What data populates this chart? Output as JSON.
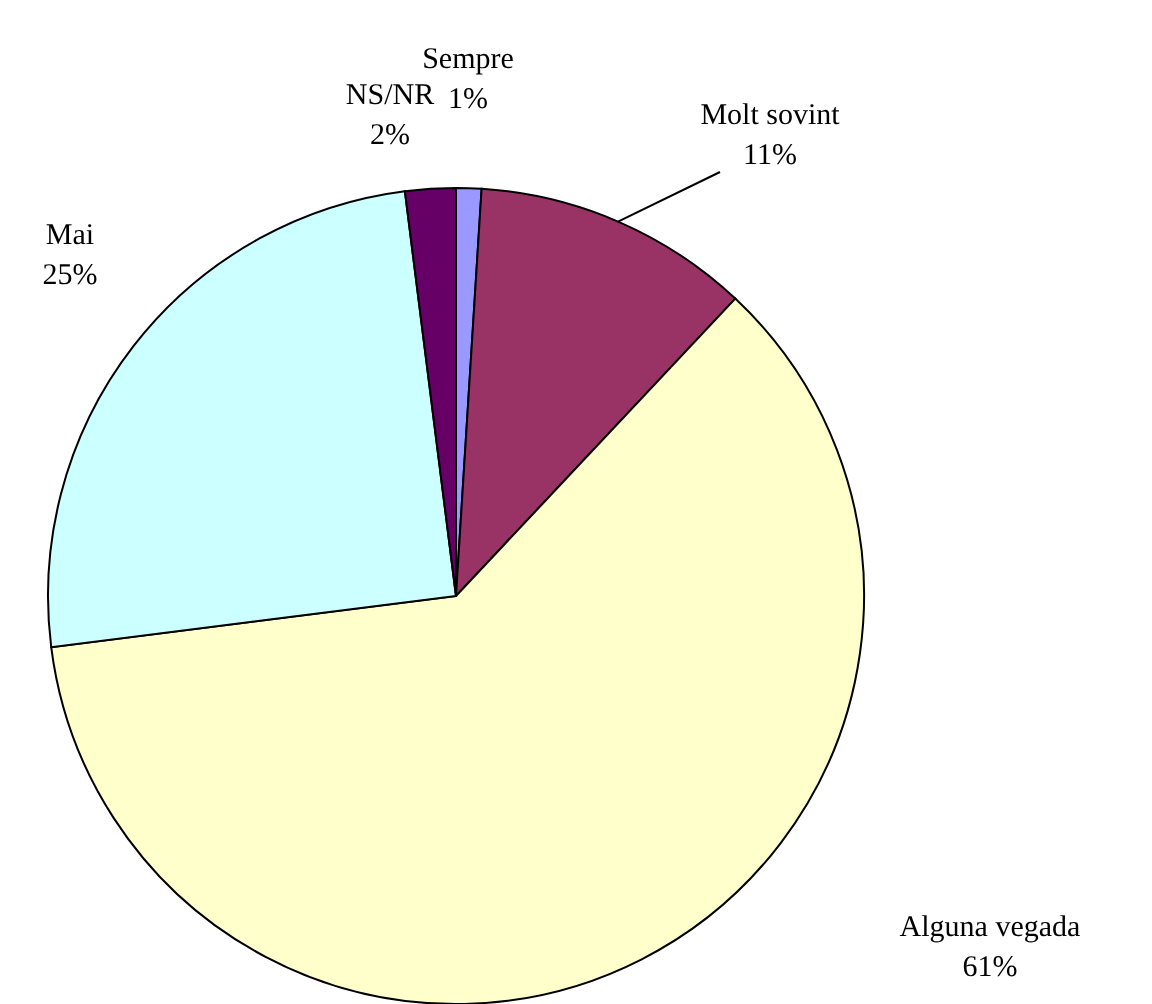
{
  "chart_data": {
    "type": "pie",
    "categories": [
      "Sempre",
      "Molt sovint",
      "Alguna vegada",
      "Mai",
      "NS/NR"
    ],
    "values": [
      1,
      11,
      61,
      25,
      2
    ],
    "colors": [
      "#9999ff",
      "#993366",
      "#ffffcc",
      "#ccffff",
      "#660066"
    ],
    "value_labels": [
      "1%",
      "11%",
      "61%",
      "25%",
      "2%"
    ]
  }
}
